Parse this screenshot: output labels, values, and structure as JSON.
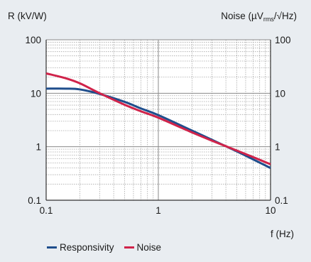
{
  "chart_data": {
    "type": "line",
    "ylabel_left": "R (kV/W)",
    "ylabel_right": {
      "base": "Noise (µV",
      "sub": "rms",
      "tail": "/√Hz)"
    },
    "xlabel": "f (Hz)",
    "xscale": "log",
    "yscale": "log",
    "xlim": [
      0.1,
      10
    ],
    "ylim": [
      0.1,
      100
    ],
    "x_ticks": [
      {
        "value": 0.1,
        "label": "0.1"
      },
      {
        "value": 1,
        "label": "1"
      },
      {
        "value": 10,
        "label": "10"
      }
    ],
    "y_ticks": [
      {
        "value": 100,
        "label": "100"
      },
      {
        "value": 10,
        "label": "10"
      },
      {
        "value": 1,
        "label": "1"
      },
      {
        "value": 0.1,
        "label": "0.1"
      }
    ],
    "grid": true,
    "legend_position": "bottom",
    "series": [
      {
        "name": "Responsivity",
        "color": "#1f4e8c",
        "x": [
          0.1,
          0.15,
          0.2,
          0.3,
          0.5,
          0.7,
          1,
          2,
          3,
          5,
          7,
          10
        ],
        "y": [
          12.2,
          12.2,
          11.8,
          9.7,
          6.9,
          5.2,
          3.9,
          2.0,
          1.35,
          0.82,
          0.58,
          0.4
        ]
      },
      {
        "name": "Noise",
        "color": "#d0234a",
        "x": [
          0.1,
          0.15,
          0.2,
          0.3,
          0.5,
          0.7,
          1,
          2,
          3,
          5,
          7,
          10
        ],
        "y": [
          23.5,
          19.0,
          15.3,
          10.0,
          6.1,
          4.6,
          3.5,
          1.85,
          1.3,
          0.85,
          0.64,
          0.47
        ]
      }
    ]
  }
}
